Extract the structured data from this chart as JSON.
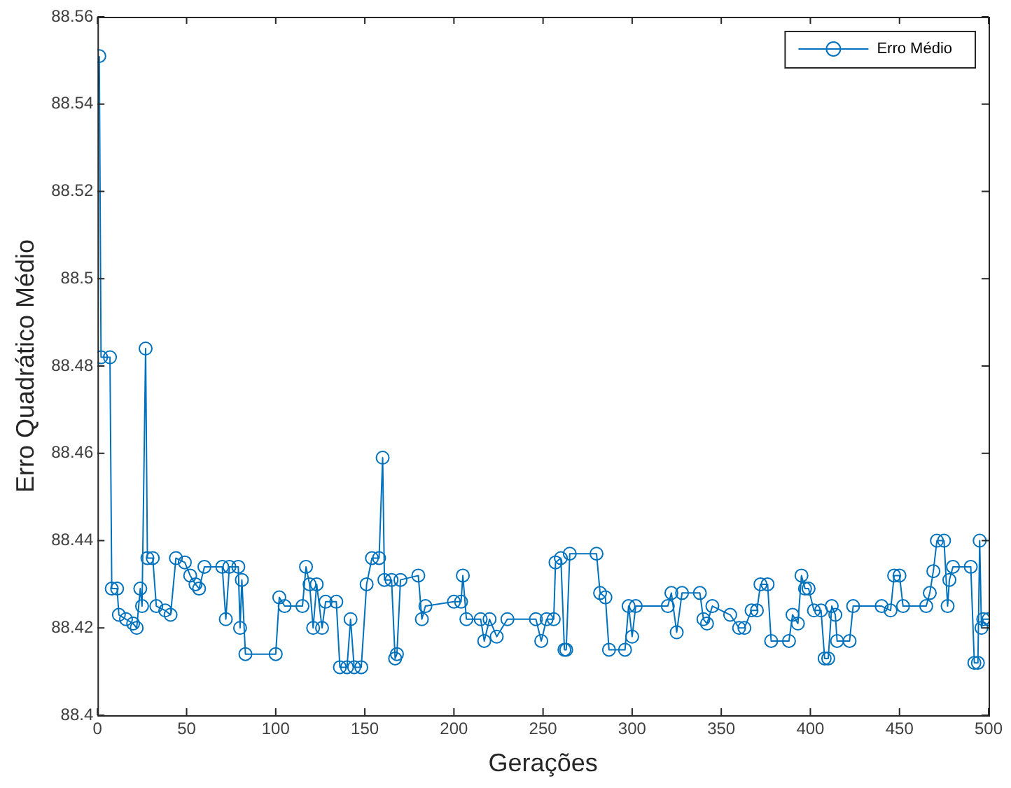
{
  "chart_data": {
    "type": "line",
    "xlabel": "Gerações",
    "ylabel": "Erro Quadrático Médio",
    "legend": "top right",
    "marker": "circle",
    "line_style": "solid",
    "grid": false,
    "xlim": [
      0,
      500
    ],
    "xticks": [
      0,
      50,
      100,
      150,
      200,
      250,
      300,
      350,
      400,
      450,
      500
    ],
    "ylim": [
      88.4,
      88.56
    ],
    "yticks": [
      88.4,
      88.42,
      88.44,
      88.46,
      88.48,
      88.5,
      88.52,
      88.54,
      88.56
    ],
    "series": [
      {
        "name": "Erro Médio",
        "color": "#0072bd",
        "x": [
          1,
          2,
          7,
          8,
          11,
          12,
          16,
          20,
          22,
          24,
          25,
          27,
          28,
          31,
          33,
          38,
          41,
          44,
          49,
          52,
          55,
          57,
          60,
          70,
          72,
          74,
          79,
          80,
          81,
          83,
          100,
          102,
          105,
          115,
          117,
          119,
          121,
          123,
          126,
          128,
          134,
          136,
          140,
          142,
          144,
          148,
          151,
          154,
          158,
          160,
          161,
          165,
          167,
          168,
          170,
          180,
          182,
          184,
          200,
          204,
          205,
          207,
          215,
          217,
          220,
          224,
          230,
          246,
          249,
          252,
          256,
          257,
          260,
          262,
          263,
          265,
          280,
          282,
          285,
          287,
          296,
          298,
          300,
          302,
          320,
          322,
          325,
          328,
          338,
          340,
          342,
          345,
          355,
          360,
          363,
          367,
          370,
          372,
          376,
          378,
          388,
          390,
          393,
          395,
          397,
          399,
          402,
          406,
          408,
          410,
          412,
          414,
          415,
          422,
          424,
          440,
          445,
          447,
          450,
          452,
          465,
          467,
          469,
          471,
          475,
          477,
          478,
          480,
          490,
          492,
          494,
          495,
          496,
          497,
          500
        ],
        "values": [
          88.551,
          88.482,
          88.482,
          88.429,
          88.429,
          88.423,
          88.422,
          88.421,
          88.42,
          88.429,
          88.425,
          88.484,
          88.436,
          88.436,
          88.425,
          88.424,
          88.423,
          88.436,
          88.435,
          88.432,
          88.43,
          88.429,
          88.434,
          88.434,
          88.422,
          88.434,
          88.434,
          88.42,
          88.431,
          88.414,
          88.414,
          88.427,
          88.425,
          88.425,
          88.434,
          88.43,
          88.42,
          88.43,
          88.42,
          88.426,
          88.426,
          88.411,
          88.411,
          88.422,
          88.411,
          88.411,
          88.43,
          88.436,
          88.436,
          88.459,
          88.431,
          88.431,
          88.413,
          88.414,
          88.431,
          88.432,
          88.422,
          88.425,
          88.426,
          88.426,
          88.432,
          88.422,
          88.422,
          88.417,
          88.422,
          88.418,
          88.422,
          88.422,
          88.417,
          88.422,
          88.422,
          88.435,
          88.436,
          88.415,
          88.415,
          88.437,
          88.437,
          88.428,
          88.427,
          88.415,
          88.415,
          88.425,
          88.418,
          88.425,
          88.425,
          88.428,
          88.419,
          88.428,
          88.428,
          88.422,
          88.421,
          88.425,
          88.423,
          88.42,
          88.42,
          88.424,
          88.424,
          88.43,
          88.43,
          88.417,
          88.417,
          88.423,
          88.421,
          88.432,
          88.429,
          88.429,
          88.424,
          88.424,
          88.413,
          88.413,
          88.425,
          88.423,
          88.417,
          88.417,
          88.425,
          88.425,
          88.424,
          88.432,
          88.432,
          88.425,
          88.425,
          88.428,
          88.433,
          88.44,
          88.44,
          88.425,
          88.431,
          88.434,
          88.434,
          88.412,
          88.412,
          88.44,
          88.42,
          88.422,
          88.422
        ]
      }
    ]
  }
}
